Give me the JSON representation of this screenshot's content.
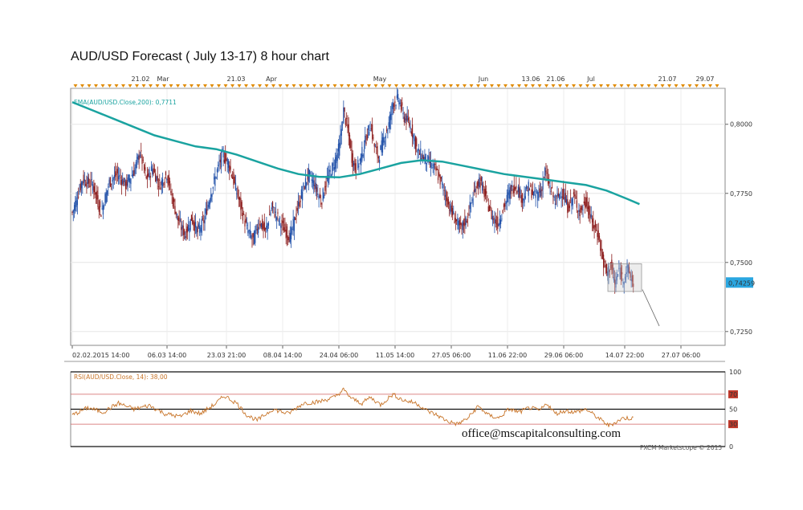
{
  "title": "AUD/USD Forecast ( July 13-17) 8 hour chart",
  "email": "office@mscapitalconsulting.com",
  "watermark": "FXCM Marketscope © 2015",
  "colors": {
    "candle_up": "#1f4fa8",
    "candle_down": "#8b1a1a",
    "ema": "#1aa3a0",
    "rsi": "#c8752a",
    "rsi_band": "#d06060",
    "marker": "#e08a00"
  },
  "chart_data": [
    {
      "type": "candlestick",
      "instrument": "AUD/USD",
      "timeframe": "8 hour",
      "ylim": [
        0.72,
        0.813
      ],
      "y_ticks": [
        "0,8000",
        "0,7750",
        "0,7500",
        "0,7250"
      ],
      "y_tick_values": [
        0.8,
        0.775,
        0.75,
        0.725
      ],
      "x_tick_labels": [
        "02.02.2015 14:00",
        "06.03 14:00",
        "23.03 21:00",
        "08.04 14:00",
        "24.04 06:00",
        "11.05 14:00",
        "27.05 06:00",
        "11.06 22:00",
        "29.06 06:00",
        "14.07 22:00",
        "27.07 06:00"
      ],
      "top_labels": [
        "21.02",
        "Mar",
        "21.03",
        "Apr",
        "May",
        "Jun",
        "13.06",
        "21.06",
        "Jul",
        "21.07",
        "29.07"
      ],
      "current_price": "0,74259",
      "current_price_value": 0.74259,
      "ema_label": "EMA(AUD/USD.Close,200): 0,7711",
      "ema_value": 0.7711,
      "close_path": [
        [
          0,
          0.768
        ],
        [
          10,
          0.78
        ],
        [
          20,
          0.778
        ],
        [
          28,
          0.768
        ],
        [
          36,
          0.779
        ],
        [
          44,
          0.782
        ],
        [
          52,
          0.778
        ],
        [
          60,
          0.783
        ],
        [
          66,
          0.79
        ],
        [
          72,
          0.78
        ],
        [
          78,
          0.784
        ],
        [
          85,
          0.778
        ],
        [
          92,
          0.782
        ],
        [
          98,
          0.772
        ],
        [
          104,
          0.764
        ],
        [
          110,
          0.76
        ],
        [
          116,
          0.766
        ],
        [
          122,
          0.761
        ],
        [
          128,
          0.765
        ],
        [
          134,
          0.774
        ],
        [
          140,
          0.782
        ],
        [
          146,
          0.789
        ],
        [
          152,
          0.786
        ],
        [
          158,
          0.778
        ],
        [
          164,
          0.77
        ],
        [
          170,
          0.762
        ],
        [
          176,
          0.758
        ],
        [
          182,
          0.765
        ],
        [
          188,
          0.761
        ],
        [
          194,
          0.77
        ],
        [
          200,
          0.766
        ],
        [
          206,
          0.762
        ],
        [
          212,
          0.759
        ],
        [
          218,
          0.768
        ],
        [
          224,
          0.776
        ],
        [
          230,
          0.782
        ],
        [
          236,
          0.778
        ],
        [
          242,
          0.772
        ],
        [
          248,
          0.78
        ],
        [
          254,
          0.785
        ],
        [
          260,
          0.792
        ],
        [
          264,
          0.805
        ],
        [
          268,
          0.798
        ],
        [
          272,
          0.788
        ],
        [
          276,
          0.783
        ],
        [
          280,
          0.787
        ],
        [
          286,
          0.795
        ],
        [
          290,
          0.8
        ],
        [
          294,
          0.792
        ],
        [
          298,
          0.788
        ],
        [
          304,
          0.796
        ],
        [
          308,
          0.8
        ],
        [
          312,
          0.808
        ],
        [
          318,
          0.809
        ],
        [
          322,
          0.803
        ],
        [
          328,
          0.8
        ],
        [
          332,
          0.796
        ],
        [
          336,
          0.79
        ],
        [
          342,
          0.788
        ],
        [
          348,
          0.786
        ],
        [
          354,
          0.783
        ],
        [
          360,
          0.778
        ],
        [
          366,
          0.771
        ],
        [
          372,
          0.766
        ],
        [
          378,
          0.762
        ],
        [
          384,
          0.766
        ],
        [
          390,
          0.774
        ],
        [
          396,
          0.78
        ],
        [
          402,
          0.774
        ],
        [
          408,
          0.767
        ],
        [
          414,
          0.764
        ],
        [
          420,
          0.77
        ],
        [
          426,
          0.776
        ],
        [
          432,
          0.778
        ],
        [
          438,
          0.773
        ],
        [
          444,
          0.777
        ],
        [
          450,
          0.774
        ],
        [
          456,
          0.776
        ],
        [
          460,
          0.783
        ],
        [
          464,
          0.778
        ],
        [
          470,
          0.772
        ],
        [
          476,
          0.776
        ],
        [
          482,
          0.77
        ],
        [
          488,
          0.774
        ],
        [
          494,
          0.768
        ],
        [
          500,
          0.772
        ],
        [
          506,
          0.764
        ],
        [
          512,
          0.76
        ],
        [
          516,
          0.751
        ],
        [
          520,
          0.746
        ],
        [
          524,
          0.749
        ],
        [
          528,
          0.742
        ],
        [
          532,
          0.747
        ],
        [
          536,
          0.744
        ],
        [
          540,
          0.748
        ],
        [
          544,
          0.744
        ],
        [
          546,
          0.7426
        ]
      ],
      "ema_path": [
        [
          0,
          0.808
        ],
        [
          20,
          0.805
        ],
        [
          40,
          0.802
        ],
        [
          60,
          0.799
        ],
        [
          80,
          0.796
        ],
        [
          100,
          0.794
        ],
        [
          120,
          0.792
        ],
        [
          140,
          0.791
        ],
        [
          160,
          0.789
        ],
        [
          180,
          0.7865
        ],
        [
          200,
          0.784
        ],
        [
          220,
          0.782
        ],
        [
          240,
          0.781
        ],
        [
          260,
          0.7808
        ],
        [
          280,
          0.782
        ],
        [
          300,
          0.784
        ],
        [
          320,
          0.786
        ],
        [
          340,
          0.787
        ],
        [
          360,
          0.7865
        ],
        [
          380,
          0.785
        ],
        [
          400,
          0.7835
        ],
        [
          420,
          0.782
        ],
        [
          440,
          0.781
        ],
        [
          460,
          0.78
        ],
        [
          480,
          0.779
        ],
        [
          500,
          0.778
        ],
        [
          520,
          0.776
        ],
        [
          540,
          0.773
        ],
        [
          552,
          0.7711
        ]
      ],
      "n_bars": 547
    },
    {
      "type": "line",
      "indicator_label": "RSI(AUD/USD.Close, 14): 38,00",
      "ylim": [
        0,
        100
      ],
      "levels": [
        "100",
        "70",
        "50",
        "30",
        "0"
      ],
      "level_values": [
        100,
        70,
        50,
        30,
        0
      ],
      "current_value": 38.0,
      "path": [
        [
          0,
          42
        ],
        [
          15,
          52
        ],
        [
          30,
          46
        ],
        [
          45,
          58
        ],
        [
          60,
          50
        ],
        [
          75,
          55
        ],
        [
          90,
          44
        ],
        [
          105,
          40
        ],
        [
          115,
          48
        ],
        [
          125,
          44
        ],
        [
          140,
          58
        ],
        [
          148,
          68
        ],
        [
          160,
          58
        ],
        [
          170,
          42
        ],
        [
          180,
          35
        ],
        [
          195,
          50
        ],
        [
          210,
          44
        ],
        [
          225,
          58
        ],
        [
          240,
          60
        ],
        [
          255,
          66
        ],
        [
          264,
          76
        ],
        [
          272,
          64
        ],
        [
          282,
          58
        ],
        [
          290,
          66
        ],
        [
          300,
          56
        ],
        [
          312,
          70
        ],
        [
          322,
          62
        ],
        [
          335,
          58
        ],
        [
          345,
          48
        ],
        [
          355,
          42
        ],
        [
          365,
          34
        ],
        [
          375,
          30
        ],
        [
          385,
          38
        ],
        [
          395,
          54
        ],
        [
          405,
          42
        ],
        [
          415,
          38
        ],
        [
          425,
          50
        ],
        [
          435,
          46
        ],
        [
          445,
          52
        ],
        [
          455,
          48
        ],
        [
          462,
          58
        ],
        [
          470,
          44
        ],
        [
          480,
          48
        ],
        [
          490,
          46
        ],
        [
          500,
          50
        ],
        [
          508,
          42
        ],
        [
          516,
          34
        ],
        [
          522,
          28
        ],
        [
          528,
          32
        ],
        [
          536,
          38
        ],
        [
          546,
          38
        ]
      ]
    }
  ]
}
